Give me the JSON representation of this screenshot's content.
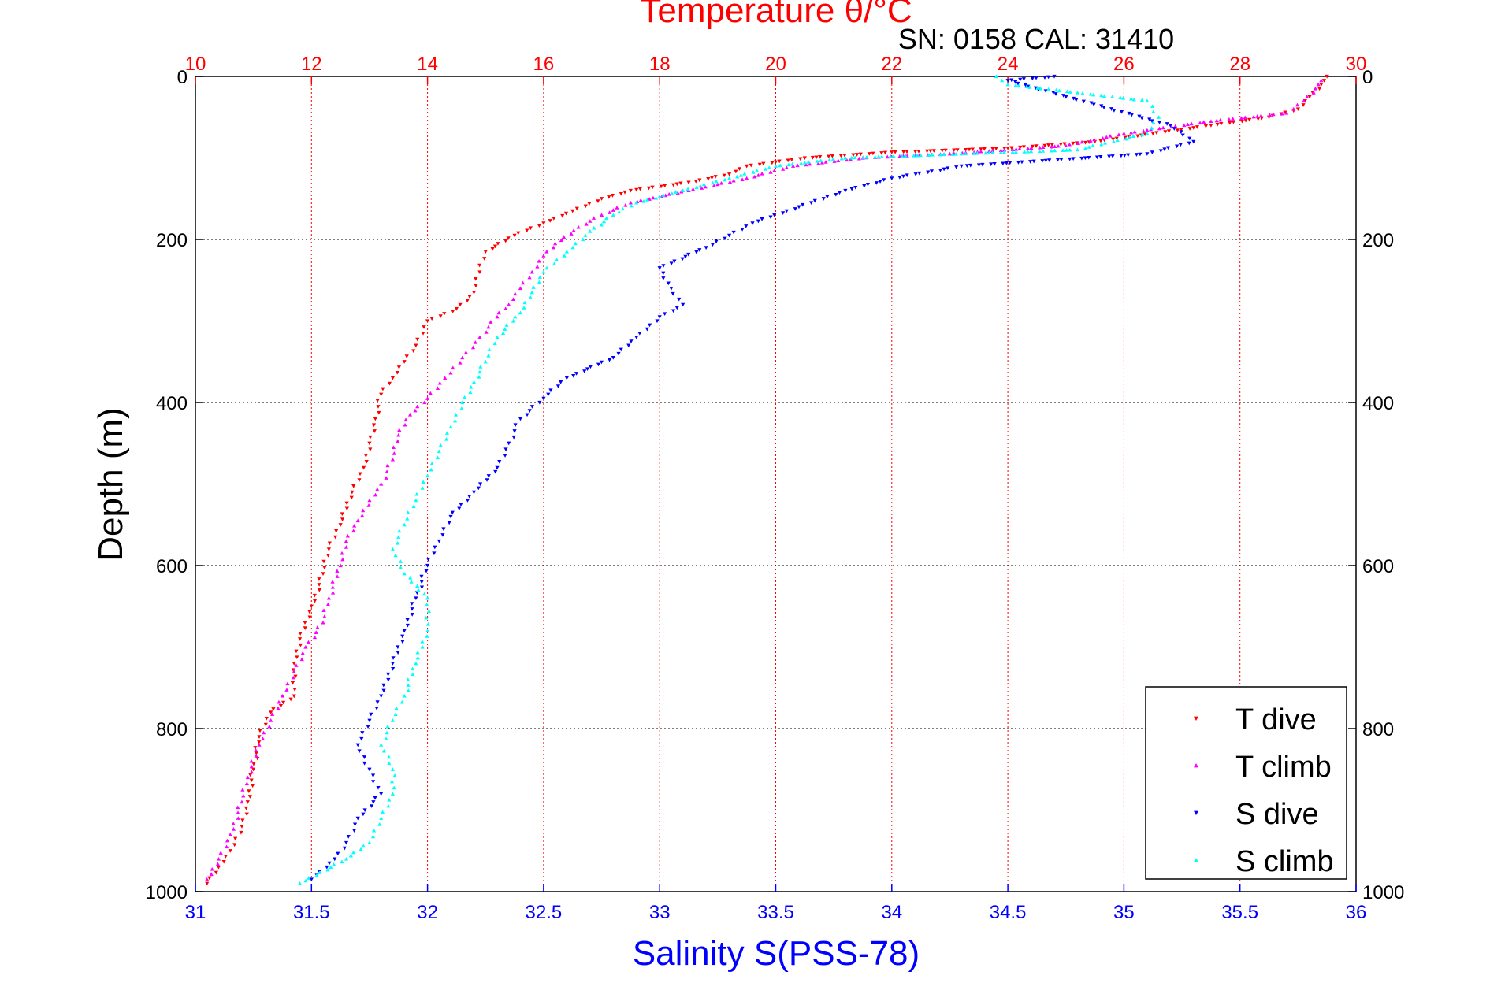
{
  "chart_data": {
    "type": "scatter",
    "annotation": "SN: 0158  CAL: 31410",
    "ylabel": "Depth (m)",
    "ylim": [
      1000,
      0
    ],
    "yticks": [
      0,
      200,
      400,
      600,
      800,
      1000
    ],
    "ylim_order": "reversed",
    "top_axis": {
      "label": "Temperature θ/°C",
      "lim": [
        10,
        30
      ],
      "ticks": [
        10,
        12,
        14,
        16,
        18,
        20,
        22,
        24,
        26,
        28,
        30
      ],
      "color": "#ff0000"
    },
    "bottom_axis": {
      "label": "Salinity S(PSS-78)",
      "lim": [
        31,
        36
      ],
      "ticks": [
        "31",
        "31.5",
        "32",
        "32.5",
        "33",
        "33.5",
        "34",
        "34.5",
        "35",
        "35.5",
        "36"
      ],
      "color": "#0000ff"
    },
    "grid": true,
    "legend_position": "bottom-right",
    "series": [
      {
        "name": "T dive",
        "axis": "top",
        "color": "#ff0000",
        "marker": "triangle-down",
        "points": [
          [
            29.5,
            0
          ],
          [
            29.4,
            10
          ],
          [
            29.2,
            25
          ],
          [
            29.0,
            40
          ],
          [
            28.5,
            50
          ],
          [
            27.5,
            60
          ],
          [
            26.5,
            70
          ],
          [
            25.5,
            80
          ],
          [
            24.0,
            88
          ],
          [
            22.0,
            93
          ],
          [
            20.5,
            100
          ],
          [
            19.5,
            110
          ],
          [
            19.2,
            120
          ],
          [
            18.5,
            130
          ],
          [
            17.5,
            140
          ],
          [
            17.0,
            150
          ],
          [
            16.5,
            165
          ],
          [
            16.0,
            180
          ],
          [
            15.5,
            195
          ],
          [
            15.0,
            215
          ],
          [
            14.9,
            240
          ],
          [
            14.8,
            265
          ],
          [
            14.5,
            285
          ],
          [
            14.0,
            300
          ],
          [
            13.8,
            330
          ],
          [
            13.6,
            350
          ],
          [
            13.4,
            370
          ],
          [
            13.2,
            390
          ],
          [
            13.1,
            420
          ],
          [
            13.0,
            450
          ],
          [
            12.9,
            480
          ],
          [
            12.7,
            510
          ],
          [
            12.5,
            550
          ],
          [
            12.3,
            580
          ],
          [
            12.2,
            610
          ],
          [
            12.0,
            650
          ],
          [
            11.8,
            690
          ],
          [
            11.7,
            720
          ],
          [
            11.7,
            760
          ],
          [
            11.3,
            780
          ],
          [
            11.1,
            810
          ],
          [
            11.0,
            850
          ],
          [
            10.9,
            890
          ],
          [
            10.8,
            920
          ],
          [
            10.6,
            950
          ],
          [
            10.4,
            970
          ],
          [
            10.2,
            990
          ]
        ]
      },
      {
        "name": "T climb",
        "axis": "top",
        "color": "#ff00ff",
        "marker": "triangle-up",
        "points": [
          [
            29.4,
            5
          ],
          [
            29.3,
            15
          ],
          [
            29.1,
            30
          ],
          [
            28.8,
            45
          ],
          [
            27.5,
            55
          ],
          [
            26.0,
            70
          ],
          [
            25.0,
            85
          ],
          [
            23.0,
            95
          ],
          [
            21.5,
            100
          ],
          [
            20.3,
            110
          ],
          [
            19.5,
            125
          ],
          [
            18.5,
            140
          ],
          [
            17.5,
            155
          ],
          [
            17.0,
            170
          ],
          [
            16.6,
            185
          ],
          [
            16.2,
            205
          ],
          [
            16.0,
            220
          ],
          [
            15.8,
            240
          ],
          [
            15.6,
            260
          ],
          [
            15.4,
            280
          ],
          [
            15.2,
            295
          ],
          [
            14.9,
            320
          ],
          [
            14.6,
            345
          ],
          [
            14.3,
            370
          ],
          [
            14.0,
            395
          ],
          [
            13.7,
            415
          ],
          [
            13.5,
            440
          ],
          [
            13.4,
            470
          ],
          [
            13.2,
            500
          ],
          [
            13.0,
            520
          ],
          [
            12.8,
            545
          ],
          [
            12.6,
            570
          ],
          [
            12.5,
            600
          ],
          [
            12.3,
            640
          ],
          [
            12.2,
            670
          ],
          [
            11.9,
            700
          ],
          [
            11.7,
            730
          ],
          [
            11.5,
            760
          ],
          [
            11.3,
            790
          ],
          [
            11.1,
            820
          ],
          [
            10.9,
            860
          ],
          [
            10.8,
            890
          ],
          [
            10.6,
            930
          ],
          [
            10.4,
            960
          ],
          [
            10.2,
            985
          ]
        ]
      },
      {
        "name": "S dive",
        "axis": "bottom",
        "color": "#0000ff",
        "marker": "triangle-down",
        "points": [
          [
            34.7,
            0
          ],
          [
            34.5,
            5
          ],
          [
            35.2,
            60
          ],
          [
            35.3,
            80
          ],
          [
            35.1,
            95
          ],
          [
            34.3,
            110
          ],
          [
            34.0,
            125
          ],
          [
            33.8,
            140
          ],
          [
            33.6,
            160
          ],
          [
            33.4,
            180
          ],
          [
            33.3,
            195
          ],
          [
            33.2,
            210
          ],
          [
            33.0,
            235
          ],
          [
            33.05,
            260
          ],
          [
            33.1,
            280
          ],
          [
            33.0,
            295
          ],
          [
            32.9,
            320
          ],
          [
            32.8,
            345
          ],
          [
            32.6,
            370
          ],
          [
            32.5,
            395
          ],
          [
            32.4,
            420
          ],
          [
            32.35,
            450
          ],
          [
            32.3,
            480
          ],
          [
            32.2,
            510
          ],
          [
            32.1,
            540
          ],
          [
            32.05,
            570
          ],
          [
            32.0,
            600
          ],
          [
            31.95,
            640
          ],
          [
            31.9,
            680
          ],
          [
            31.85,
            720
          ],
          [
            31.8,
            760
          ],
          [
            31.75,
            790
          ],
          [
            31.7,
            820
          ],
          [
            31.75,
            850
          ],
          [
            31.8,
            880
          ],
          [
            31.7,
            910
          ],
          [
            31.65,
            940
          ],
          [
            31.6,
            960
          ],
          [
            31.5,
            985
          ]
        ]
      },
      {
        "name": "S climb",
        "axis": "bottom",
        "color": "#00ffff",
        "marker": "triangle-up",
        "points": [
          [
            34.45,
            0
          ],
          [
            34.5,
            10
          ],
          [
            34.8,
            20
          ],
          [
            35.1,
            30
          ],
          [
            35.15,
            50
          ],
          [
            35.1,
            70
          ],
          [
            34.8,
            90
          ],
          [
            34.3,
            95
          ],
          [
            33.8,
            100
          ],
          [
            33.5,
            110
          ],
          [
            33.3,
            125
          ],
          [
            33.1,
            140
          ],
          [
            32.9,
            155
          ],
          [
            32.8,
            170
          ],
          [
            32.7,
            190
          ],
          [
            32.6,
            215
          ],
          [
            32.5,
            240
          ],
          [
            32.45,
            265
          ],
          [
            32.4,
            290
          ],
          [
            32.3,
            320
          ],
          [
            32.25,
            350
          ],
          [
            32.2,
            375
          ],
          [
            32.15,
            400
          ],
          [
            32.1,
            430
          ],
          [
            32.05,
            460
          ],
          [
            32.0,
            490
          ],
          [
            31.95,
            520
          ],
          [
            31.9,
            550
          ],
          [
            31.85,
            580
          ],
          [
            31.9,
            610
          ],
          [
            32.0,
            640
          ],
          [
            32.0,
            680
          ],
          [
            31.95,
            720
          ],
          [
            31.9,
            760
          ],
          [
            31.85,
            790
          ],
          [
            31.8,
            820
          ],
          [
            31.85,
            850
          ],
          [
            31.85,
            880
          ],
          [
            31.8,
            910
          ],
          [
            31.75,
            940
          ],
          [
            31.65,
            960
          ],
          [
            31.45,
            990
          ]
        ]
      }
    ]
  }
}
